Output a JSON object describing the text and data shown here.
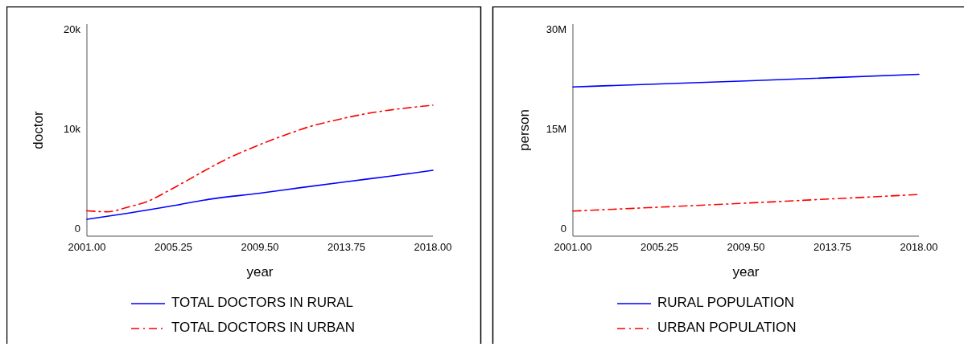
{
  "chart_data": [
    {
      "type": "line",
      "xlabel": "year",
      "ylabel": "doctor",
      "xlim": [
        2001,
        2018
      ],
      "ylim": [
        -650,
        20650
      ],
      "xticks": [
        {
          "value": 2001,
          "label": "2001.00"
        },
        {
          "value": 2005.25,
          "label": "2005.25"
        },
        {
          "value": 2009.5,
          "label": "2009.50"
        },
        {
          "value": 2013.75,
          "label": "2013.75"
        },
        {
          "value": 2018,
          "label": "2018.00"
        }
      ],
      "yticks": [
        0,
        {
          "value": 10000,
          "label": "10k"
        },
        {
          "value": 20000,
          "label": "20k"
        }
      ],
      "legend": "bottom",
      "grid": false,
      "series": [
        {
          "name": "TOTAL DOCTORS IN RURAL",
          "color": "#0000ff",
          "line_style": "solid",
          "x": [
            2001,
            2003,
            2005.25,
            2007,
            2009.5,
            2011.5,
            2013.75,
            2016,
            2018
          ],
          "values": [
            1050,
            1650,
            2410,
            3050,
            3670,
            4220,
            4820,
            5400,
            5960
          ]
        },
        {
          "name": "TOTAL DOCTORS IN URBAN",
          "color": "#ff0000",
          "line_style": "dashed",
          "x": [
            2001,
            2002,
            2003,
            2004,
            2005,
            2006,
            2007,
            2008,
            2009,
            2010,
            2011,
            2012,
            2013,
            2014,
            2015,
            2016,
            2017,
            2018
          ],
          "values": [
            1900,
            1800,
            2260,
            2860,
            3900,
            5030,
            6170,
            7230,
            8130,
            8950,
            9700,
            10390,
            10900,
            11360,
            11750,
            12050,
            12290,
            12500
          ]
        }
      ]
    },
    {
      "type": "line",
      "xlabel": "year",
      "ylabel": "person",
      "xlim": [
        2001,
        2018
      ],
      "ylim": [
        -975000,
        30960000
      ],
      "xticks": [
        {
          "value": 2001,
          "label": "2001.00"
        },
        {
          "value": 2005.25,
          "label": "2005.25"
        },
        {
          "value": 2009.5,
          "label": "2009.50"
        },
        {
          "value": 2013.75,
          "label": "2013.75"
        },
        {
          "value": 2018,
          "label": "2018.00"
        }
      ],
      "yticks": [
        0,
        {
          "value": 15000000,
          "label": "15M"
        },
        {
          "value": 30000000,
          "label": "30M"
        }
      ],
      "legend": "bottom",
      "grid": false,
      "series": [
        {
          "name": "RURAL POPULATION",
          "color": "#0000ff",
          "line_style": "solid",
          "x": [
            2001,
            2009.5,
            2018
          ],
          "values": [
            21500000,
            22400000,
            23400000
          ]
        },
        {
          "name": "URBAN POPULATION",
          "color": "#ff0000",
          "line_style": "dashed",
          "x": [
            2001,
            2009.5,
            2018
          ],
          "values": [
            2800000,
            4000000,
            5300000
          ]
        }
      ]
    }
  ]
}
